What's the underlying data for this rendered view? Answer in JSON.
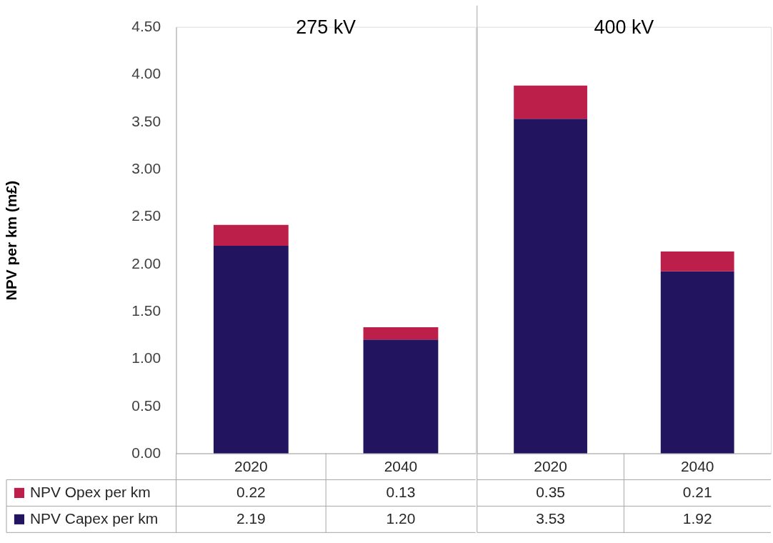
{
  "chart_data": [
    {
      "type": "bar",
      "title": "275 kV",
      "ylabel": "NPV per km (m£)",
      "categories": [
        "2020",
        "2040"
      ],
      "stacked": true,
      "ylim": [
        0,
        4.5
      ],
      "yticks": [
        {
          "value": 0,
          "label": "0.00"
        },
        {
          "value": 0.5,
          "label": "0.50"
        },
        {
          "value": 1,
          "label": "1.00"
        },
        {
          "value": 1.5,
          "label": "1.50"
        },
        {
          "value": 2,
          "label": "2.00"
        },
        {
          "value": 2.5,
          "label": "2.50"
        },
        {
          "value": 3,
          "label": "3.00"
        },
        {
          "value": 3.5,
          "label": "3.50"
        },
        {
          "value": 4,
          "label": "4.00"
        },
        {
          "value": 4.5,
          "label": "4.50"
        }
      ],
      "legend": "bottom left",
      "series": [
        {
          "name": "NPV Capex per km",
          "color": "#22145e",
          "values": [
            2.19,
            1.2
          ],
          "value_labels": [
            "2.19",
            "1.20"
          ]
        },
        {
          "name": "NPV Opex per km",
          "color": "#bd1f4b",
          "values": [
            0.22,
            0.13
          ],
          "value_labels": [
            "0.22",
            "0.13"
          ]
        }
      ]
    },
    {
      "type": "bar",
      "title": "400 kV",
      "categories": [
        "2020",
        "2040"
      ],
      "stacked": true,
      "ylim": [
        0,
        4.5
      ],
      "tick_labels": "x",
      "series": [
        {
          "color": "#22145e",
          "values": [
            3.53,
            1.92
          ],
          "value_labels": [
            "3.53",
            "1.92"
          ]
        },
        {
          "color": "#bd1f4b",
          "values": [
            0.35,
            0.21
          ],
          "value_labels": [
            "0.35",
            "0.21"
          ]
        }
      ]
    }
  ]
}
